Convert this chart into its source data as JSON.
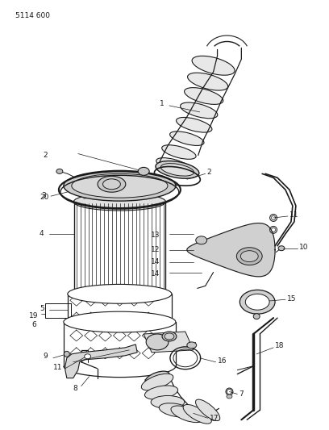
{
  "title": "5114 600",
  "bg_color": "#ffffff",
  "line_color": "#1a1a1a",
  "title_fontsize": 6.5,
  "label_fontsize": 6.5,
  "figsize": [
    4.08,
    5.33
  ],
  "dpi": 100
}
